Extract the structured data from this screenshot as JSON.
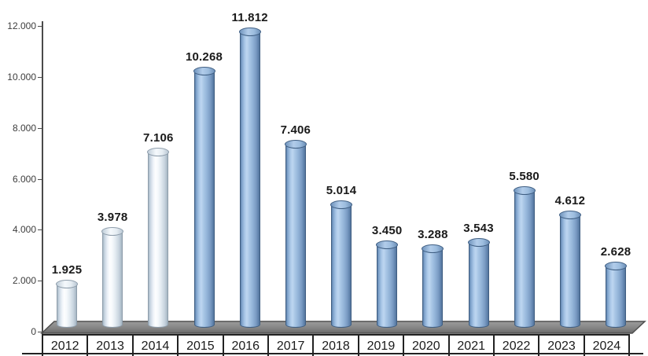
{
  "chart_data": {
    "type": "bar",
    "title": "",
    "xlabel": "",
    "ylabel": "",
    "categories": [
      "2012",
      "2013",
      "2014",
      "2015",
      "2016",
      "2017",
      "2018",
      "2019",
      "2020",
      "2021",
      "2022",
      "2023",
      "2024"
    ],
    "values": [
      1925,
      3978,
      7106,
      10268,
      11812,
      7406,
      5014,
      3450,
      3288,
      3543,
      5580,
      4612,
      2628
    ],
    "value_labels": [
      "1.925",
      "3.978",
      "7.106",
      "10.268",
      "11.812",
      "7.406",
      "5.014",
      "3.450",
      "3.288",
      "3.543",
      "5.580",
      "4.612",
      "2.628"
    ],
    "bar_styles": [
      "light",
      "light",
      "light",
      "blue",
      "blue",
      "blue",
      "blue",
      "blue",
      "blue",
      "blue",
      "blue",
      "blue",
      "blue"
    ],
    "y_ticks": [
      {
        "value": 0,
        "label": "0"
      },
      {
        "value": 2000,
        "label": "2.000"
      },
      {
        "value": 4000,
        "label": "4.000"
      },
      {
        "value": 6000,
        "label": "6.000"
      },
      {
        "value": 8000,
        "label": "8.000"
      },
      {
        "value": 10000,
        "label": "10.000"
      },
      {
        "value": 12000,
        "label": "12.000"
      }
    ],
    "ylim": [
      0,
      12000
    ],
    "grid": false,
    "legend": null,
    "style_notes": "3D cylinder bars on gray perspective floor; years in bordered table cells below axis",
    "colors": {
      "bar_blue_main": "#8fb4dc",
      "bar_blue_border": "#3f5e82",
      "bar_light_main": "#eef3f8",
      "bar_light_border": "#8e9dab",
      "floor_top": "#999999",
      "floor_bottom": "#6a6a6a",
      "floor_stroke": "#4f4f4f",
      "axis": "#4a4a4a",
      "ytick_text": "#3d3d3d",
      "text": "#1a1a1a",
      "cell_border": "#222222",
      "background": "#ffffff"
    }
  }
}
